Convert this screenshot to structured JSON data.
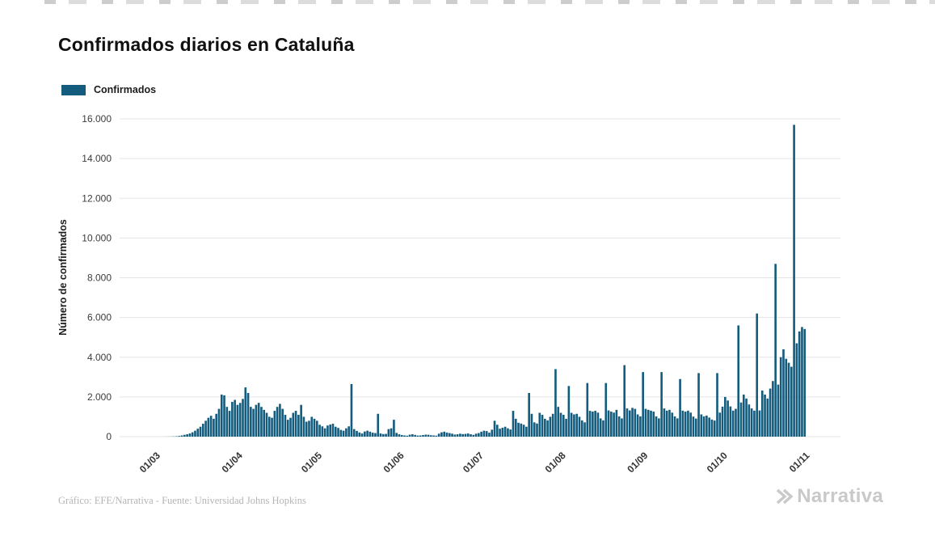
{
  "page": {
    "background": "#ffffff"
  },
  "chart_data": {
    "type": "bar",
    "title": "Confirmados diarios en Cataluña",
    "xlabel": "",
    "ylabel": "Número de confirmados",
    "series_name": "Confirmados",
    "bar_color": "#135c7d",
    "grid": true,
    "legend_position": "top-left",
    "ylim": [
      0,
      16000
    ],
    "ytick_step": 2000,
    "ytick_labels": [
      "0",
      "2.000",
      "4.000",
      "6.000",
      "8.000",
      "10.000",
      "12.000",
      "14.000",
      "16.000"
    ],
    "xtick_labels": [
      "01/03",
      "01/04",
      "01/05",
      "01/06",
      "01/07",
      "01/08",
      "01/09",
      "01/10",
      "01/11"
    ],
    "xtick_day_offsets": [
      14,
      45,
      75,
      106,
      136,
      167,
      198,
      228,
      259
    ],
    "x_domain_days": 272,
    "values": [
      0,
      0,
      0,
      0,
      0,
      0,
      0,
      0,
      0,
      0,
      0,
      0,
      0,
      0,
      0,
      0,
      1,
      2,
      5,
      8,
      12,
      20,
      35,
      60,
      90,
      120,
      160,
      220,
      300,
      400,
      500,
      650,
      800,
      950,
      1050,
      900,
      1150,
      1400,
      2120,
      2080,
      1500,
      1300,
      1750,
      1850,
      1600,
      1700,
      1900,
      2480,
      2200,
      1500,
      1400,
      1600,
      1700,
      1500,
      1350,
      1200,
      1000,
      950,
      1300,
      1500,
      1650,
      1400,
      1100,
      850,
      950,
      1200,
      1300,
      1100,
      1600,
      1000,
      750,
      800,
      1000,
      900,
      800,
      600,
      520,
      420,
      560,
      610,
      650,
      500,
      440,
      340,
      300,
      420,
      520,
      2650,
      380,
      290,
      210,
      160,
      260,
      300,
      250,
      200,
      180,
      1150,
      160,
      130,
      140,
      380,
      420,
      850,
      190,
      120,
      80,
      60,
      50,
      100,
      120,
      85,
      55,
      60,
      80,
      100,
      95,
      70,
      60,
      50,
      150,
      220,
      250,
      205,
      180,
      150,
      105,
      120,
      150,
      130,
      140,
      160,
      120,
      90,
      150,
      180,
      250,
      300,
      280,
      200,
      350,
      800,
      600,
      400,
      450,
      500,
      420,
      360,
      1300,
      900,
      700,
      660,
      600,
      500,
      2200,
      1150,
      720,
      660,
      1200,
      1100,
      900,
      820,
      1000,
      1150,
      3400,
      1500,
      1200,
      1100,
      900,
      2550,
      1200,
      1120,
      1150,
      1000,
      820,
      720,
      2700,
      1300,
      1260,
      1300,
      1210,
      920,
      820,
      2700,
      1320,
      1260,
      1210,
      1350,
      1020,
      920,
      3600,
      1420,
      1320,
      1450,
      1400,
      1120,
      1020,
      3250,
      1400,
      1350,
      1310,
      1260,
      1020,
      920,
      3250,
      1420,
      1310,
      1350,
      1210,
      1020,
      920,
      2900,
      1310,
      1260,
      1310,
      1210,
      1010,
      910,
      3200,
      1120,
      1020,
      1060,
      960,
      860,
      810,
      3200,
      1210,
      1510,
      2000,
      1820,
      1520,
      1310,
      1400,
      5600,
      1720,
      2120,
      1920,
      1620,
      1420,
      1310,
      6200,
      1320,
      2320,
      2120,
      1920,
      2420,
      2800,
      8700,
      2620,
      4000,
      4400,
      3920,
      3720,
      3520,
      15700,
      4700,
      5300,
      5520,
      5420
    ]
  },
  "footer": {
    "credit": "Gráfico: EFE/Narrativa - Fuente: Universidad Johns Hopkins",
    "logo_text": "Narrativa"
  }
}
